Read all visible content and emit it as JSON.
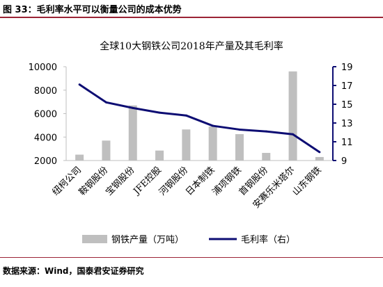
{
  "figure": {
    "label": "图 33：毛利率水平可以衡量公司的成本优势",
    "source": "数据来源：Wind，国泰君安证券研究"
  },
  "colors": {
    "bar": "#bfbfbf",
    "line": "#0d0d73",
    "right_axis": "#0d0d73",
    "rule": "#9b2335"
  },
  "chart_data": {
    "type": "bar+line",
    "title": "全球10大钢铁公司2018年产量及其毛利率",
    "categories": [
      "纽柯公司",
      "鞍钢股份",
      "宝钢股份",
      "JFE控股",
      "河钢股份",
      "日本制铁",
      "浦项钢铁",
      "首钢股份",
      "安赛乐米塔尔",
      "山东钢铁"
    ],
    "series": [
      {
        "name": "钢铁产量（万吨）",
        "type": "bar",
        "axis": "left",
        "values": [
          2500,
          3700,
          6700,
          2850,
          4650,
          4900,
          4250,
          2650,
          9600,
          2300
        ]
      },
      {
        "name": "毛利率（右）",
        "type": "line",
        "axis": "right",
        "values": [
          17.1,
          15.2,
          14.6,
          14.1,
          13.8,
          12.7,
          12.3,
          12.1,
          11.8,
          9.9
        ]
      }
    ],
    "y_left": {
      "ylim": [
        2000,
        10000
      ],
      "ticks": [
        2000,
        4000,
        6000,
        8000,
        10000
      ]
    },
    "y_right": {
      "ylim": [
        9,
        19
      ],
      "ticks": [
        9,
        11,
        13,
        15,
        17,
        19
      ]
    },
    "legend_position": "bottom",
    "grid": false
  }
}
